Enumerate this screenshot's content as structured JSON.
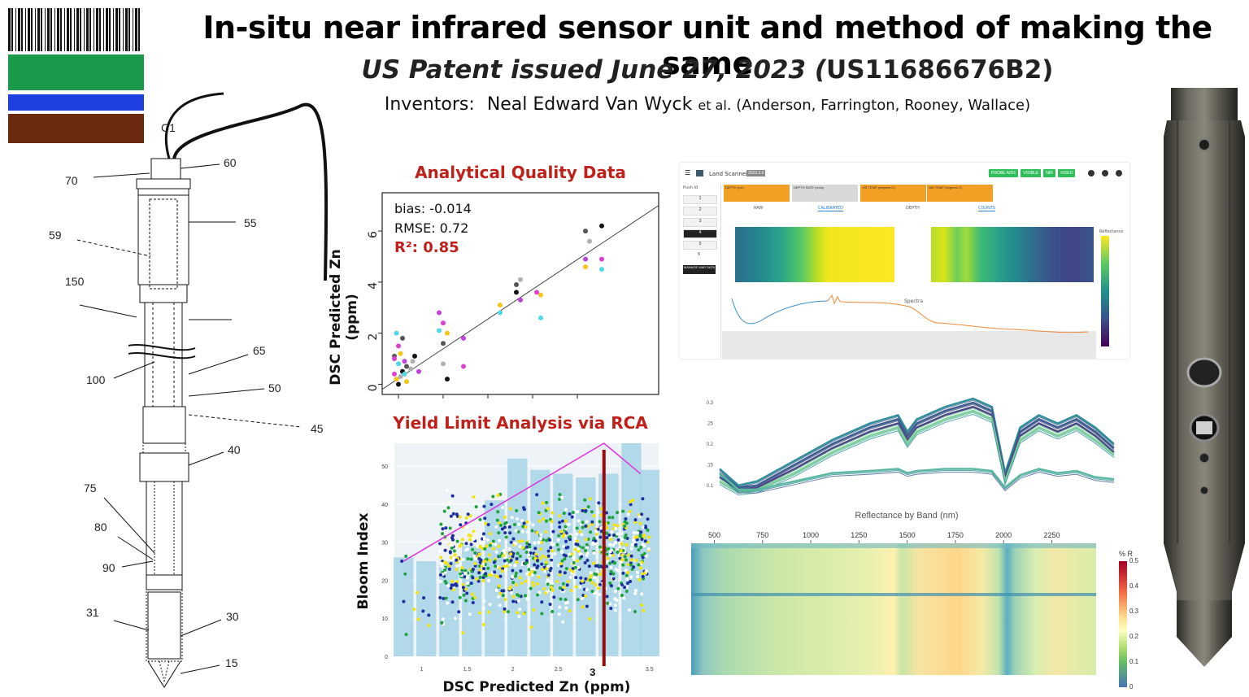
{
  "header": {
    "title": "In-situ near infrared sensor unit and method of making the same",
    "subtitle_italic": "US Patent issued June 27, 2023 (",
    "subtitle_number": "US11686676B2)",
    "inventors_label": "Inventors:",
    "inventors_name": "Neal Edward Van Wyck",
    "inventors_etal": "et al",
    "inventors_others": ". (Anderson, Farrington, Rooney, Wallace)"
  },
  "logo": {
    "bars": [
      "#1a9a4a",
      "#1f3fe0",
      "#6b2a0e"
    ]
  },
  "patent_drawing": {
    "labels": [
      "C1",
      "70",
      "60",
      "55",
      "59",
      "150",
      "100",
      "65",
      "50",
      "45",
      "40",
      "75",
      "80",
      "90",
      "31",
      "30",
      "15"
    ]
  },
  "analytical_chart": {
    "heading": "Analytical Quality Data",
    "ylabel": "DSC Predicted Zn (ppm)",
    "yticks": [
      "0",
      "2",
      "4",
      "6"
    ],
    "bias": "bias: -0.014",
    "rmse": "RMSE: 0.72",
    "r2": "R²: 0.85"
  },
  "yield_chart": {
    "heading": "Yield Limit Analysis via RCA",
    "ylabel": "Bloom Index",
    "xlabel": "DSC Predicted Zn (ppm)",
    "xticks": [
      "1",
      "1.5",
      "2",
      "2.5",
      "3",
      "3.5"
    ],
    "yticks": [
      "0",
      "10",
      "20",
      "30",
      "40",
      "50"
    ],
    "threshold_label": "3"
  },
  "land_scanner": {
    "app_name": "Land Scanner",
    "version": "2023.3.0",
    "buttons": [
      "PROBE A001",
      "VISIBLE",
      "NIR",
      "VIDEO"
    ],
    "tabs": [
      "DEPTH (cm)",
      "DEPTH RATE (cm/s)",
      "VIS TEMP (degrees C)",
      "NIR TEMP (degrees C)"
    ],
    "subtabs": [
      "RAW",
      "CALIBRATED",
      "DEPTH",
      "COUNTS"
    ],
    "push_label": "Push Id",
    "push_items": [
      "1",
      "2",
      "3",
      "4",
      "5",
      "6"
    ],
    "manage_label": "MANAGE MAP DATA",
    "spectra_label": "Spectra",
    "colorbar_label": "Reflectance"
  },
  "reflectance_chart": {
    "yticks": [
      "0.3",
      ".25",
      "0.2",
      ".15",
      "0.1"
    ],
    "xlabel": "Reflectance by Band (nm)"
  },
  "heatmap": {
    "xticks": [
      "500",
      "750",
      "1000",
      "1250",
      "1500",
      "1750",
      "2000",
      "2250"
    ],
    "colorbar_title": "% R",
    "colorbar_ticks": [
      "0.5",
      "0.4",
      "0.3",
      "0.2",
      "0.1",
      "0"
    ]
  },
  "chart_data": [
    {
      "type": "scatter",
      "title": "Analytical Quality Data",
      "xlabel": "",
      "ylabel": "DSC Predicted Zn (ppm)",
      "ylim": [
        -0.4,
        7.5
      ],
      "xlim": [
        0,
        6.8
      ],
      "points": [
        [
          0.3,
          0.4
        ],
        [
          0.35,
          0.2
        ],
        [
          0.4,
          0.8
        ],
        [
          0.3,
          1.1
        ],
        [
          0.45,
          0.3
        ],
        [
          0.5,
          0.5
        ],
        [
          0.55,
          0.9
        ],
        [
          0.4,
          1.5
        ],
        [
          0.6,
          0.1
        ],
        [
          0.35,
          2.0
        ],
        [
          0.5,
          1.8
        ],
        [
          0.7,
          0.6
        ],
        [
          0.8,
          1.1
        ],
        [
          0.9,
          0.5
        ],
        [
          0.3,
          1.0
        ],
        [
          0.45,
          1.2
        ],
        [
          0.55,
          0.4
        ],
        [
          0.6,
          0.7
        ],
        [
          0.75,
          0.9
        ],
        [
          0.4,
          0.0
        ],
        [
          1.4,
          2.8
        ],
        [
          1.5,
          2.4
        ],
        [
          1.6,
          2.0
        ],
        [
          1.4,
          2.1
        ],
        [
          1.5,
          1.6
        ],
        [
          1.5,
          0.8
        ],
        [
          1.6,
          0.2
        ],
        [
          2.0,
          1.8
        ],
        [
          2.0,
          0.7
        ],
        [
          2.9,
          3.1
        ],
        [
          2.9,
          2.8
        ],
        [
          3.3,
          3.9
        ],
        [
          3.4,
          4.1
        ],
        [
          3.3,
          3.6
        ],
        [
          3.4,
          3.3
        ],
        [
          3.8,
          3.6
        ],
        [
          3.9,
          3.5
        ],
        [
          3.9,
          2.6
        ],
        [
          5.0,
          6.0
        ],
        [
          5.1,
          5.6
        ],
        [
          5.4,
          6.2
        ],
        [
          5.0,
          4.9
        ],
        [
          5.4,
          4.9
        ],
        [
          5.0,
          4.6
        ],
        [
          5.4,
          4.5
        ]
      ],
      "fit_line": [
        [
          0,
          -0.2
        ],
        [
          6.8,
          7.0
        ]
      ],
      "annotations": [
        "bias: -0.014",
        "RMSE: 0.72",
        "R²: 0.85"
      ]
    },
    {
      "type": "scatter",
      "title": "Yield Limit Analysis via RCA",
      "xlabel": "DSC Predicted Zn (ppm)",
      "ylabel": "Bloom Index",
      "xlim": [
        0.7,
        3.6
      ],
      "ylim": [
        0,
        56
      ],
      "bars_x": [
        0.8,
        1.05,
        1.3,
        1.55,
        1.8,
        2.05,
        2.3,
        2.55,
        2.8,
        3.05,
        3.3,
        3.5
      ],
      "bars_values": [
        26,
        25,
        25,
        29,
        41,
        52,
        49,
        48,
        47,
        48,
        56,
        49
      ],
      "boundary_line": [
        [
          0.8,
          25
        ],
        [
          3.0,
          56
        ],
        [
          3.4,
          48
        ]
      ],
      "threshold_x": 3.0,
      "series": [
        {
          "color": "#f4e40c"
        },
        {
          "color": "#1c2fa0"
        },
        {
          "color": "#1ea33a"
        },
        {
          "color": "#ffffff"
        }
      ]
    },
    {
      "type": "line",
      "xlabel": "Reflectance by Band (nm)",
      "ylim": [
        0.08,
        0.32
      ],
      "x": [
        400,
        500,
        600,
        800,
        1000,
        1200,
        1350,
        1400,
        1450,
        1600,
        1750,
        1850,
        1920,
        2000,
        2100,
        2200,
        2300,
        2400,
        2500
      ],
      "series": [
        {
          "values": [
            0.14,
            0.1,
            0.11,
            0.16,
            0.21,
            0.25,
            0.27,
            0.23,
            0.26,
            0.29,
            0.31,
            0.29,
            0.13,
            0.24,
            0.27,
            0.25,
            0.27,
            0.24,
            0.2
          ]
        },
        {
          "values": [
            0.13,
            0.095,
            0.1,
            0.15,
            0.2,
            0.24,
            0.26,
            0.22,
            0.25,
            0.28,
            0.3,
            0.28,
            0.12,
            0.23,
            0.26,
            0.24,
            0.26,
            0.23,
            0.19
          ]
        },
        {
          "values": [
            0.12,
            0.09,
            0.095,
            0.14,
            0.19,
            0.23,
            0.25,
            0.21,
            0.24,
            0.27,
            0.29,
            0.27,
            0.115,
            0.22,
            0.25,
            0.23,
            0.25,
            0.22,
            0.18
          ]
        },
        {
          "values": [
            0.11,
            0.085,
            0.09,
            0.13,
            0.18,
            0.22,
            0.24,
            0.2,
            0.23,
            0.26,
            0.28,
            0.26,
            0.11,
            0.21,
            0.24,
            0.22,
            0.24,
            0.21,
            0.175
          ]
        },
        {
          "values": [
            0.13,
            0.09,
            0.09,
            0.11,
            0.13,
            0.135,
            0.14,
            0.13,
            0.135,
            0.14,
            0.14,
            0.135,
            0.095,
            0.125,
            0.14,
            0.13,
            0.135,
            0.12,
            0.115
          ]
        }
      ]
    },
    {
      "type": "heatmap",
      "x_ticks": [
        500,
        750,
        1000,
        1250,
        1500,
        1750,
        2000,
        2250
      ],
      "colorbar_range": [
        0,
        0.5
      ],
      "colorbar_title": "% R"
    }
  ]
}
